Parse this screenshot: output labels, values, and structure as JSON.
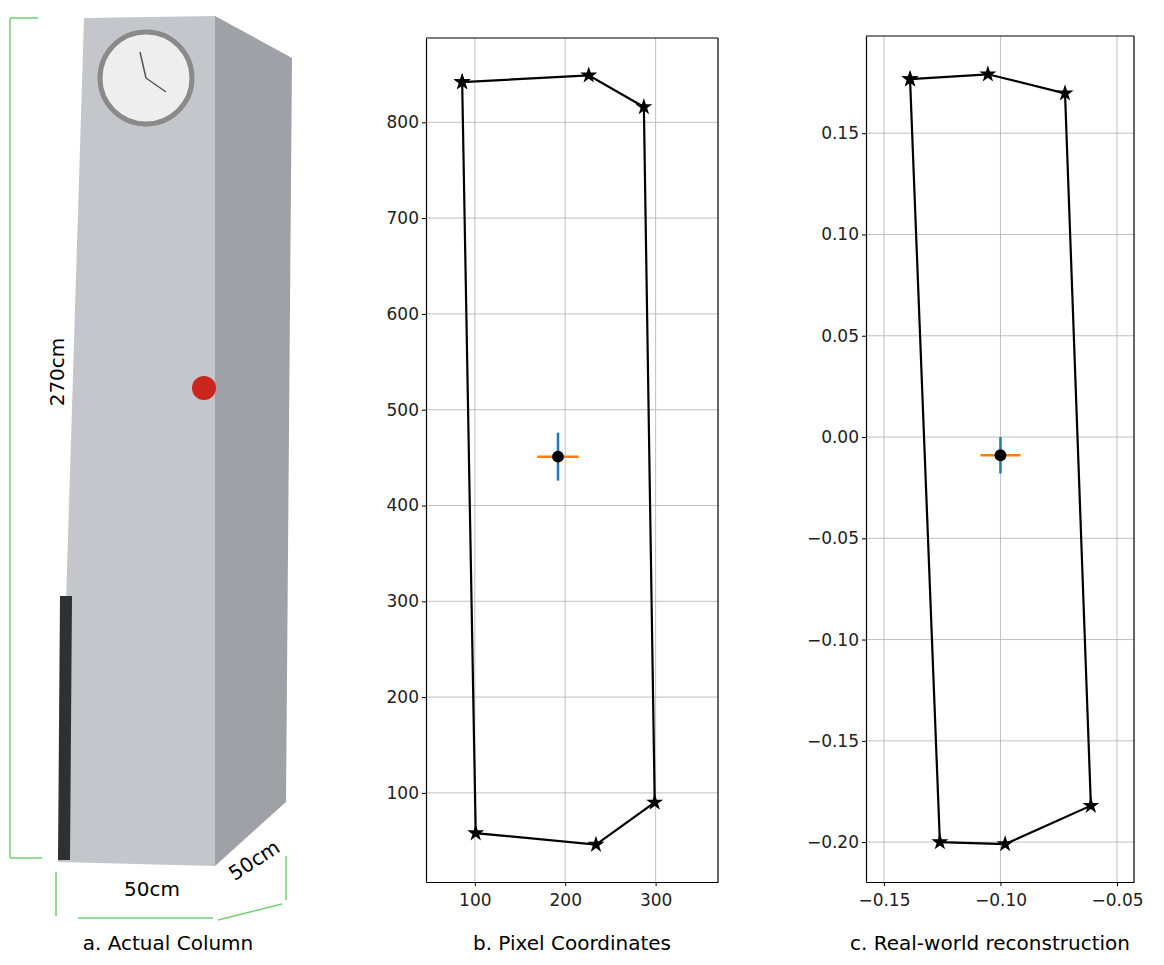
{
  "photo": {
    "caption": "a. Actual Column",
    "height_label": "270cm",
    "width_label": "50cm",
    "depth_label": "50cm"
  },
  "chart_data": [
    {
      "type": "line",
      "caption": "b. Pixel Coordinates",
      "xlim": [
        46,
        369
      ],
      "ylim": [
        7,
        888
      ],
      "xticks": [
        100,
        200,
        300
      ],
      "yticks": [
        100,
        200,
        300,
        400,
        500,
        600,
        700,
        800
      ],
      "grid": true,
      "series": [
        {
          "type": "line",
          "color": "#000000",
          "marker": "star",
          "x": [
            86,
            226,
            287,
            299,
            234,
            101,
            86
          ],
          "values": [
            842,
            849,
            816,
            90,
            46,
            58,
            842
          ]
        },
        {
          "type": "scatter",
          "color": "#000000",
          "marker": "circle",
          "x": [
            192
          ],
          "values": [
            451
          ],
          "x_error": [
            23
          ],
          "y_error": [
            25
          ]
        }
      ]
    },
    {
      "type": "line",
      "caption": "c. Real-world reconstruction",
      "xlim": [
        -0.1577,
        -0.0427
      ],
      "ylim": [
        -0.2197,
        0.198
      ],
      "xticks": [
        {
          "value": -0.15,
          "label": "−0.15"
        },
        {
          "value": -0.1,
          "label": "−0.10"
        },
        {
          "value": -0.05,
          "label": "−0.05"
        }
      ],
      "yticks": [
        {
          "value": -0.2,
          "label": "−0.20"
        },
        {
          "value": -0.15,
          "label": "−0.15"
        },
        {
          "value": -0.1,
          "label": "−0.10"
        },
        {
          "value": -0.05,
          "label": "−0.05"
        },
        {
          "value": 0,
          "label": "0.00"
        },
        {
          "value": 0.05,
          "label": "0.05"
        },
        {
          "value": 0.1,
          "label": "0.10"
        },
        {
          "value": 0.15,
          "label": "0.15"
        }
      ],
      "grid": true,
      "series": [
        {
          "type": "line",
          "color": "#000000",
          "marker": "star",
          "x": [
            -0.1388,
            -0.1054,
            -0.0723,
            -0.0612,
            -0.098,
            -0.126,
            -0.1388
          ],
          "values": [
            0.1767,
            0.1791,
            0.1697,
            -0.182,
            -0.201,
            -0.2,
            0.1767
          ]
        },
        {
          "type": "scatter",
          "color": "#000000",
          "marker": "circle",
          "x": [
            -0.1
          ],
          "values": [
            -0.009
          ],
          "x_error": [
            0.0086
          ],
          "y_error": [
            0.009
          ]
        }
      ]
    }
  ]
}
